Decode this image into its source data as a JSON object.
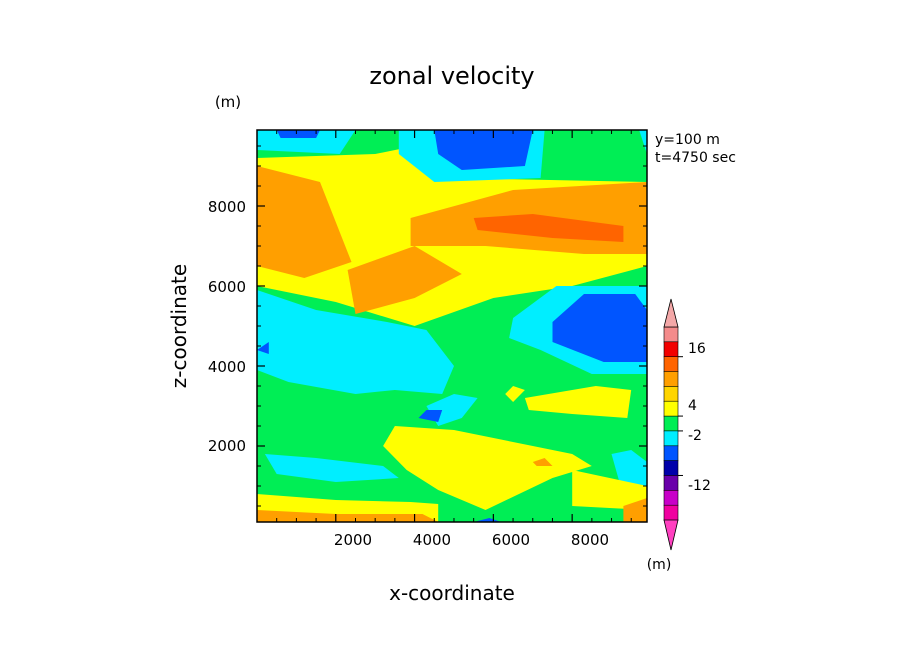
{
  "chart_data": {
    "type": "heatmap",
    "title": "zonal velocity",
    "xlabel": "x-coordinate",
    "ylabel": "z-coordinate",
    "x_unit": "(m)",
    "y_unit": "(m)",
    "xlim": [
      0,
      9900
    ],
    "ylim": [
      100,
      9900
    ],
    "x_ticks": [
      "2000",
      "4000",
      "6000",
      "8000"
    ],
    "y_ticks": [
      "2000",
      "4000",
      "6000",
      "8000"
    ],
    "annotations": [
      "y=100 m",
      "t=4750 sec"
    ],
    "colorbar": {
      "labels": [
        "16",
        "4",
        "-2",
        "-12"
      ],
      "colors": [
        "#f48b8b",
        "#f20000",
        "#ff6400",
        "#ff9f00",
        "#ffd500",
        "#ffff00",
        "#00ee55",
        "#00eeff",
        "#0055ff",
        "#0000aa",
        "#6a00aa",
        "#c800c8",
        "#f000a0"
      ],
      "extend_top_color": "#f4a8a8",
      "extend_bottom_color": "#ff40c0"
    },
    "background_color": "#00ee55",
    "regions": [
      {
        "level": "yellow",
        "polygon": [
          [
            0,
            9200
          ],
          [
            3000,
            9300
          ],
          [
            4500,
            9600
          ],
          [
            5000,
            8700
          ],
          [
            9900,
            8600
          ],
          [
            9900,
            6500
          ],
          [
            8000,
            6000
          ],
          [
            6000,
            5700
          ],
          [
            4000,
            5000
          ],
          [
            2000,
            5600
          ],
          [
            0,
            6000
          ]
        ]
      },
      {
        "level": "orange",
        "polygon": [
          [
            0,
            9000
          ],
          [
            1600,
            8600
          ],
          [
            2400,
            6600
          ],
          [
            1200,
            6200
          ],
          [
            0,
            6500
          ]
        ]
      },
      {
        "level": "orange",
        "polygon": [
          [
            3900,
            7700
          ],
          [
            6500,
            8400
          ],
          [
            9900,
            8600
          ],
          [
            9900,
            6800
          ],
          [
            8300,
            6800
          ],
          [
            5800,
            7000
          ],
          [
            3900,
            7000
          ]
        ]
      },
      {
        "level": "orange",
        "polygon": [
          [
            2300,
            6400
          ],
          [
            4000,
            7000
          ],
          [
            5200,
            6300
          ],
          [
            4000,
            5700
          ],
          [
            2500,
            5300
          ]
        ]
      },
      {
        "level": "red-orange",
        "polygon": [
          [
            5500,
            7700
          ],
          [
            7000,
            7800
          ],
          [
            9300,
            7500
          ],
          [
            9300,
            7100
          ],
          [
            7500,
            7200
          ],
          [
            5600,
            7400
          ]
        ]
      },
      {
        "level": "cyan",
        "polygon": [
          [
            3600,
            9900
          ],
          [
            7300,
            9900
          ],
          [
            7200,
            8700
          ],
          [
            4500,
            8600
          ],
          [
            3600,
            9300
          ]
        ]
      },
      {
        "level": "cyan",
        "polygon": [
          [
            0,
            9900
          ],
          [
            2500,
            9900
          ],
          [
            2100,
            9300
          ],
          [
            0,
            9400
          ]
        ]
      },
      {
        "level": "cyan",
        "polygon": [
          [
            9700,
            9900
          ],
          [
            9900,
            9900
          ],
          [
            9900,
            9300
          ]
        ]
      },
      {
        "level": "blue",
        "polygon": [
          [
            4500,
            9900
          ],
          [
            7000,
            9900
          ],
          [
            6800,
            9000
          ],
          [
            5200,
            8900
          ],
          [
            4600,
            9300
          ]
        ]
      },
      {
        "level": "blue",
        "polygon": [
          [
            500,
            9900
          ],
          [
            1600,
            9900
          ],
          [
            1500,
            9700
          ],
          [
            600,
            9700
          ]
        ]
      },
      {
        "level": "cyan",
        "polygon": [
          [
            6500,
            5200
          ],
          [
            7600,
            6000
          ],
          [
            9900,
            6000
          ],
          [
            9900,
            3800
          ],
          [
            8500,
            3800
          ],
          [
            7200,
            4400
          ],
          [
            6400,
            4700
          ]
        ]
      },
      {
        "level": "blue",
        "polygon": [
          [
            7500,
            5100
          ],
          [
            8300,
            5800
          ],
          [
            9600,
            5800
          ],
          [
            9900,
            5400
          ],
          [
            9900,
            4100
          ],
          [
            8800,
            4100
          ],
          [
            7500,
            4600
          ]
        ]
      },
      {
        "level": "cyan",
        "polygon": [
          [
            0,
            5900
          ],
          [
            1500,
            5400
          ],
          [
            3300,
            5100
          ],
          [
            4300,
            4900
          ],
          [
            5000,
            4000
          ],
          [
            4700,
            3300
          ],
          [
            3500,
            3400
          ],
          [
            2500,
            3300
          ],
          [
            800,
            3600
          ],
          [
            0,
            3900
          ]
        ]
      },
      {
        "level": "cyan",
        "polygon": [
          [
            4600,
            2500
          ],
          [
            4300,
            3000
          ],
          [
            5000,
            3300
          ],
          [
            5600,
            3200
          ],
          [
            5200,
            2700
          ]
        ]
      },
      {
        "level": "blue",
        "polygon": [
          [
            4100,
            2700
          ],
          [
            4300,
            2900
          ],
          [
            4700,
            2900
          ],
          [
            4600,
            2600
          ]
        ]
      },
      {
        "level": "blue",
        "polygon": [
          [
            0,
            4400
          ],
          [
            300,
            4600
          ],
          [
            300,
            4300
          ]
        ]
      },
      {
        "level": "yellow",
        "polygon": [
          [
            3500,
            2500
          ],
          [
            5000,
            2400
          ],
          [
            7000,
            2000
          ],
          [
            8000,
            1800
          ],
          [
            8500,
            1500
          ],
          [
            7500,
            1200
          ],
          [
            5800,
            400
          ],
          [
            4600,
            900
          ],
          [
            3800,
            1400
          ],
          [
            3200,
            2000
          ]
        ]
      },
      {
        "level": "yellow",
        "polygon": [
          [
            6800,
            3200
          ],
          [
            8600,
            3500
          ],
          [
            9500,
            3400
          ],
          [
            9400,
            2700
          ],
          [
            8000,
            2800
          ],
          [
            6900,
            2900
          ]
        ]
      },
      {
        "level": "yellow",
        "polygon": [
          [
            6300,
            3300
          ],
          [
            6500,
            3500
          ],
          [
            6800,
            3400
          ],
          [
            6500,
            3100
          ]
        ]
      },
      {
        "level": "cyan",
        "polygon": [
          [
            200,
            1800
          ],
          [
            1500,
            1700
          ],
          [
            3200,
            1500
          ],
          [
            3600,
            1200
          ],
          [
            2000,
            1100
          ],
          [
            500,
            1300
          ]
        ]
      },
      {
        "level": "cyan",
        "polygon": [
          [
            9000,
            1800
          ],
          [
            9500,
            1900
          ],
          [
            9900,
            1600
          ],
          [
            9900,
            1000
          ],
          [
            9200,
            1100
          ]
        ]
      },
      {
        "level": "yellow",
        "polygon": [
          [
            0,
            800
          ],
          [
            2000,
            650
          ],
          [
            3900,
            600
          ],
          [
            4600,
            550
          ],
          [
            4600,
            100
          ],
          [
            0,
            100
          ]
        ]
      },
      {
        "level": "yellow",
        "polygon": [
          [
            8000,
            1400
          ],
          [
            9900,
            1000
          ],
          [
            9900,
            400
          ],
          [
            8000,
            500
          ]
        ]
      },
      {
        "level": "orange",
        "polygon": [
          [
            0,
            400
          ],
          [
            2000,
            300
          ],
          [
            4200,
            300
          ],
          [
            4600,
            100
          ],
          [
            0,
            100
          ]
        ]
      },
      {
        "level": "orange",
        "polygon": [
          [
            9300,
            500
          ],
          [
            9900,
            700
          ],
          [
            9900,
            100
          ],
          [
            9300,
            100
          ]
        ]
      },
      {
        "level": "orange",
        "polygon": [
          [
            7000,
            1600
          ],
          [
            7300,
            1700
          ],
          [
            7500,
            1500
          ],
          [
            7100,
            1500
          ]
        ]
      },
      {
        "level": "blue",
        "polygon": [
          [
            5500,
            100
          ],
          [
            6200,
            100
          ],
          [
            5900,
            200
          ]
        ]
      }
    ]
  }
}
